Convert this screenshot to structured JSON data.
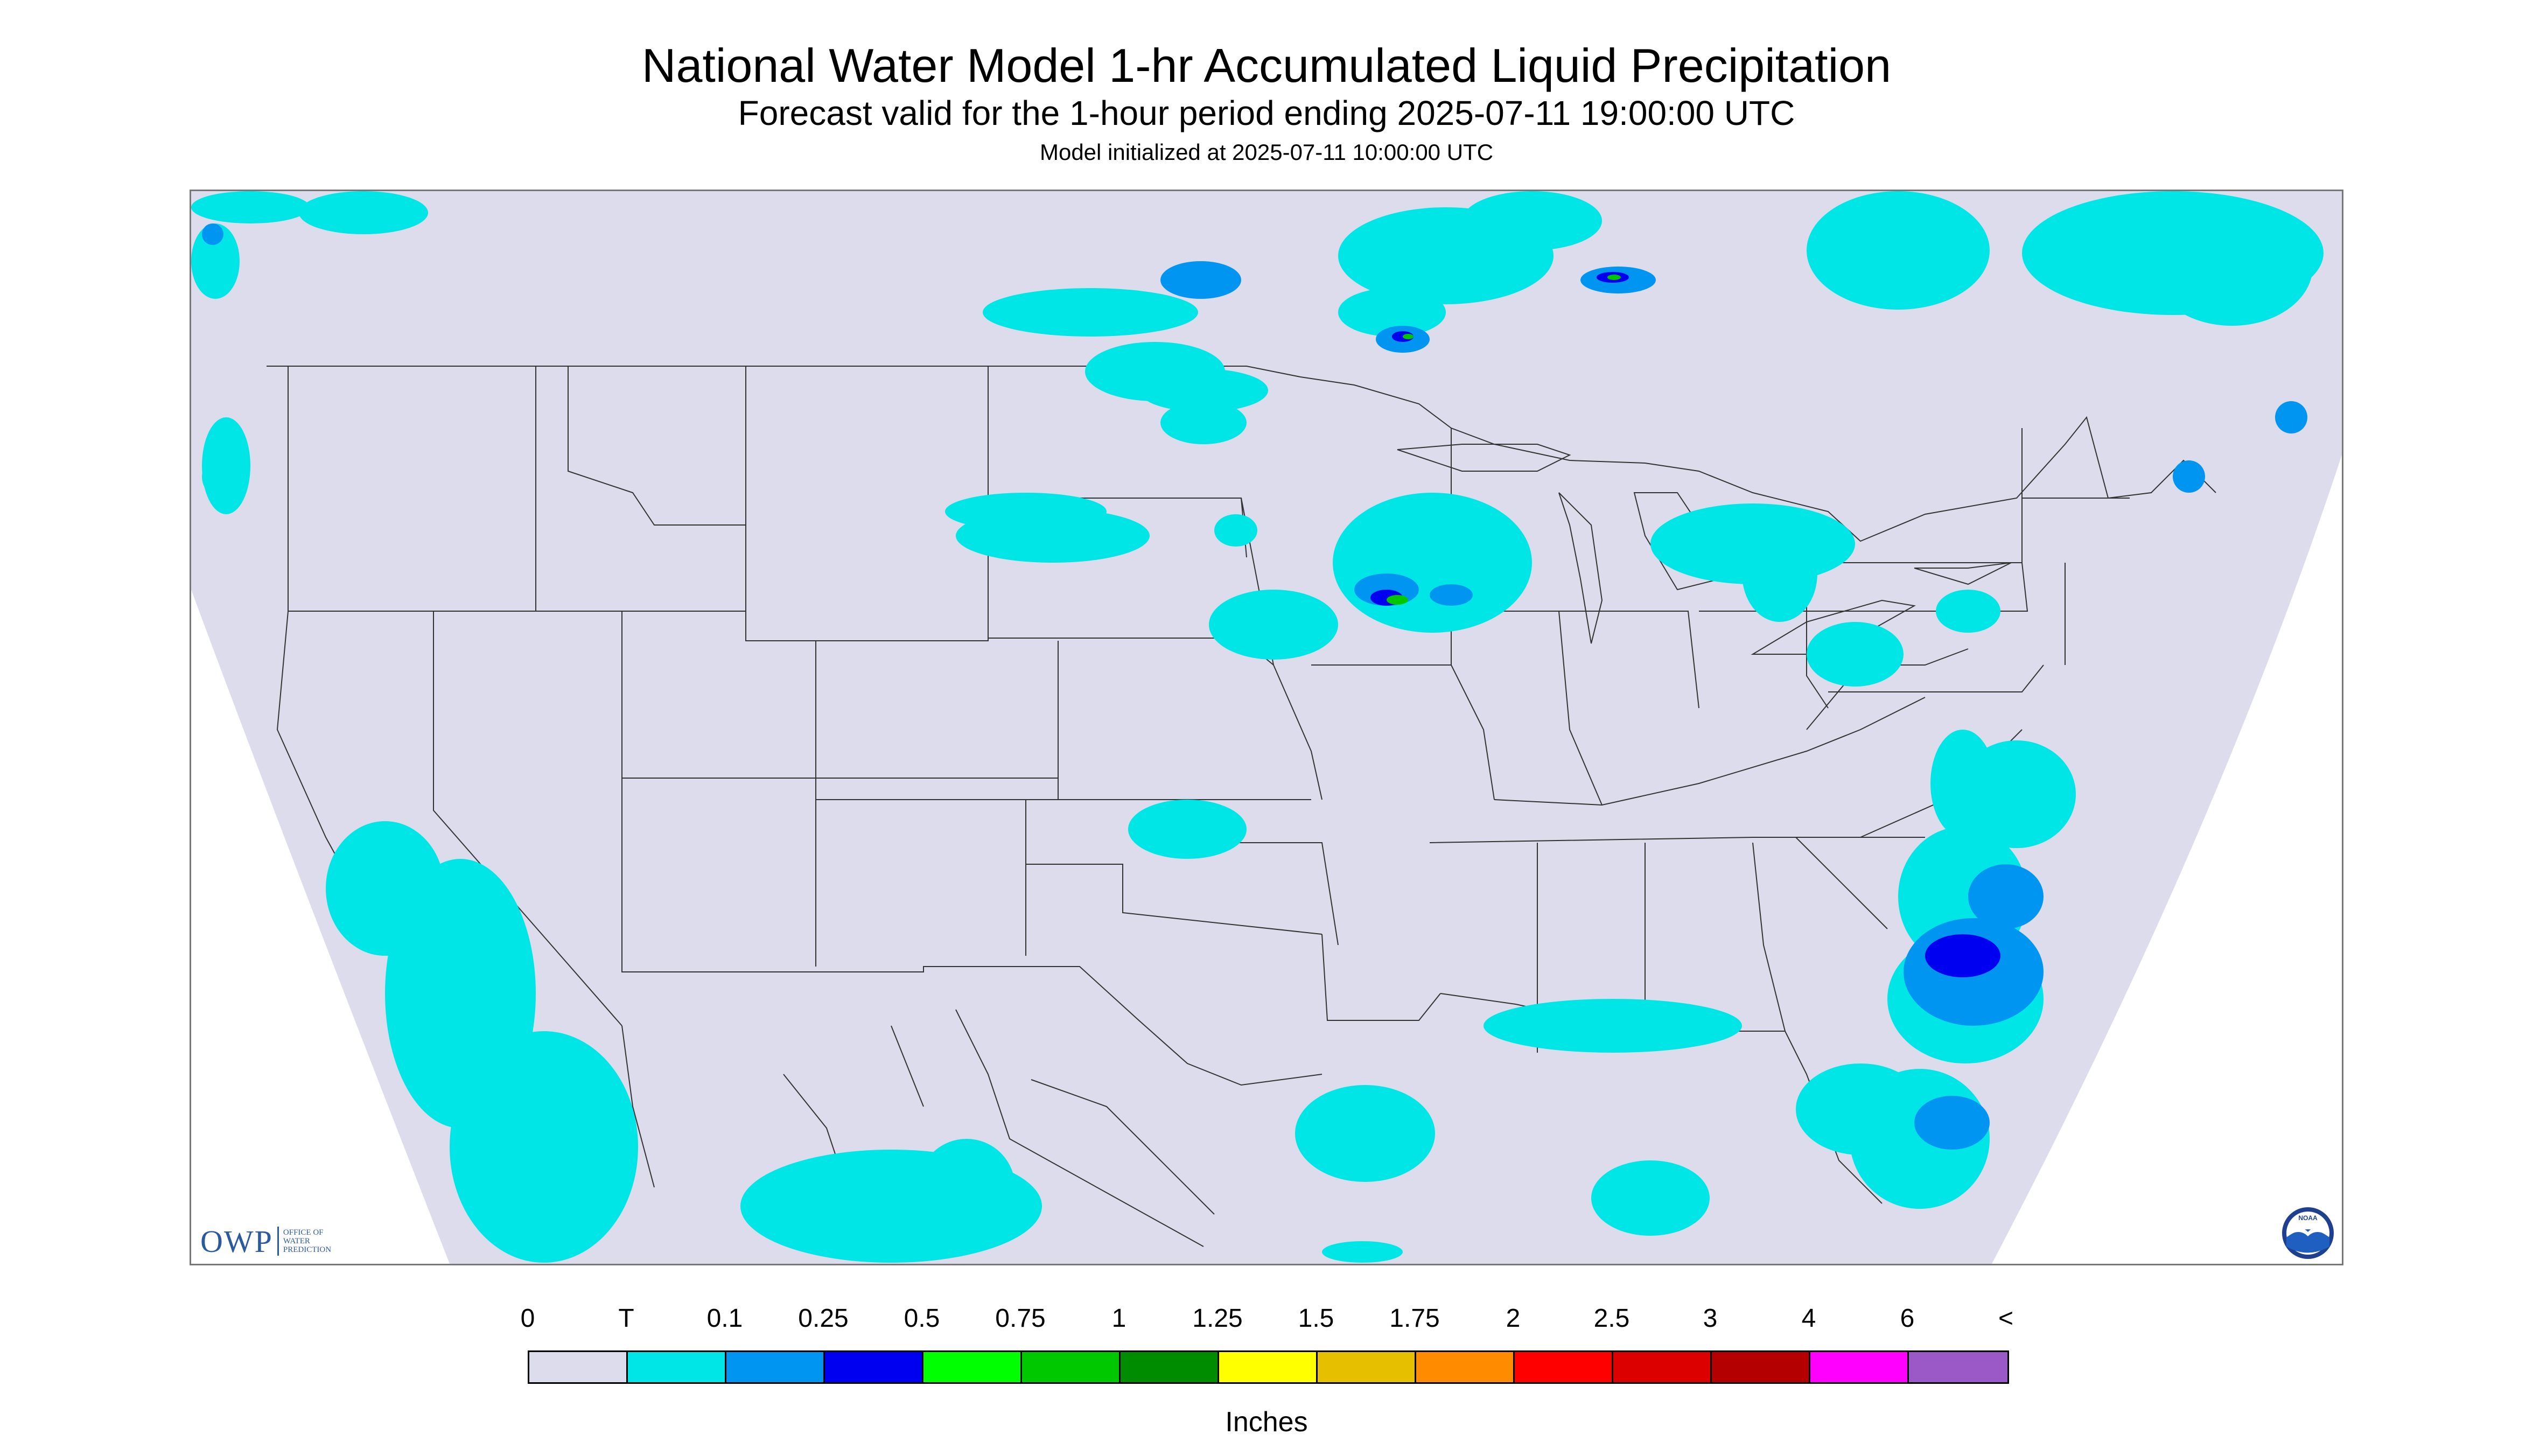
{
  "header": {
    "title": "National Water Model 1-hr Accumulated Liquid Precipitation",
    "subtitle": "Forecast valid for the 1-hour period ending 2025-07-11 19:00:00 UTC",
    "init": "Model initialized at 2025-07-11 10:00:00 UTC"
  },
  "map": {
    "background_color": "#dcdcec",
    "border_color": "#777777",
    "boundary_color": "#333333",
    "precip_colors": {
      "trace": "#00e5e5",
      "light": "#0095f0",
      "moderate": "#0000f0",
      "heavy": "#00c800"
    }
  },
  "logos": {
    "owp_mark": "OWP",
    "owp_text": [
      "Office of",
      "Water",
      "Prediction"
    ],
    "noaa_text": "NOAA",
    "noaa_icon": "noaa-gull-icon"
  },
  "legend": {
    "labels": [
      "0",
      "T",
      "0.1",
      "0.25",
      "0.5",
      "0.75",
      "1",
      "1.25",
      "1.5",
      "1.75",
      "2",
      "2.5",
      "3",
      "4",
      "6",
      "<"
    ],
    "colors": [
      "#dcdcec",
      "#00e5e5",
      "#0095f0",
      "#0000f0",
      "#00ff00",
      "#00c800",
      "#008c00",
      "#ffff00",
      "#e6c000",
      "#ff8c00",
      "#ff0000",
      "#dc0000",
      "#b40000",
      "#ff00ff",
      "#9b59c8"
    ],
    "unit": "Inches"
  }
}
